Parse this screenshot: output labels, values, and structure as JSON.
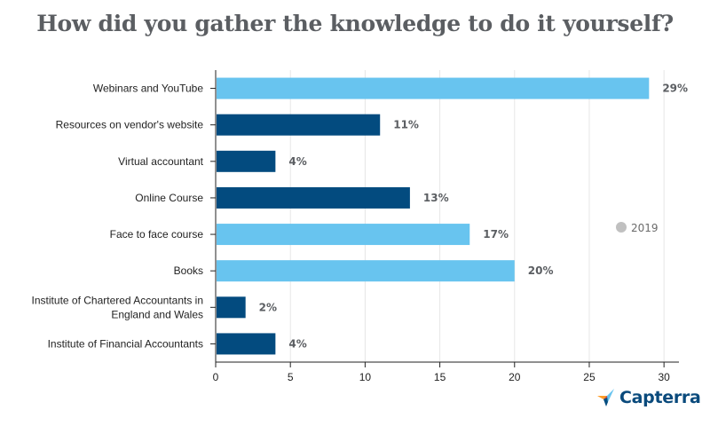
{
  "title": "How did you gather the knowledge to do it yourself?",
  "brand": "Capterra",
  "legend": {
    "label": "2019",
    "color": "#c0c0c0"
  },
  "colors": {
    "dark": "#034b7f",
    "light": "#68c4ef",
    "label": "#5b5e62"
  },
  "chart_data": {
    "type": "bar",
    "orientation": "horizontal",
    "title": "How did you gather the knowledge to do it yourself?",
    "xlim": [
      0,
      31
    ],
    "xticks": [
      0,
      5,
      10,
      15,
      20,
      25,
      30
    ],
    "grid": true,
    "legend_position": "right",
    "categories": [
      "Webinars and YouTube",
      "Resources on vendor's website",
      "Virtual accountant",
      "Online Course",
      "Face to face course",
      "Books",
      "Institute of Chartered Accountants in England and Wales",
      "Institute of Financial Accountants"
    ],
    "category_lines": [
      [
        "Webinars and YouTube"
      ],
      [
        "Resources on vendor's website"
      ],
      [
        "Virtual accountant"
      ],
      [
        "Online Course"
      ],
      [
        "Face to face course"
      ],
      [
        "Books"
      ],
      [
        "Institute of Chartered Accountants in",
        "England and Wales"
      ],
      [
        "Institute of Financial Accountants"
      ]
    ],
    "values": [
      29,
      11,
      4,
      13,
      17,
      20,
      2,
      4
    ],
    "labels": [
      "29%",
      "11%",
      "4%",
      "13%",
      "17%",
      "20%",
      "2%",
      "4%"
    ],
    "bar_colors": [
      "light",
      "dark",
      "dark",
      "dark",
      "light",
      "light",
      "dark",
      "dark"
    ],
    "series": [
      {
        "name": "2019",
        "values": [
          29,
          11,
          4,
          13,
          17,
          20,
          2,
          4
        ]
      }
    ]
  }
}
